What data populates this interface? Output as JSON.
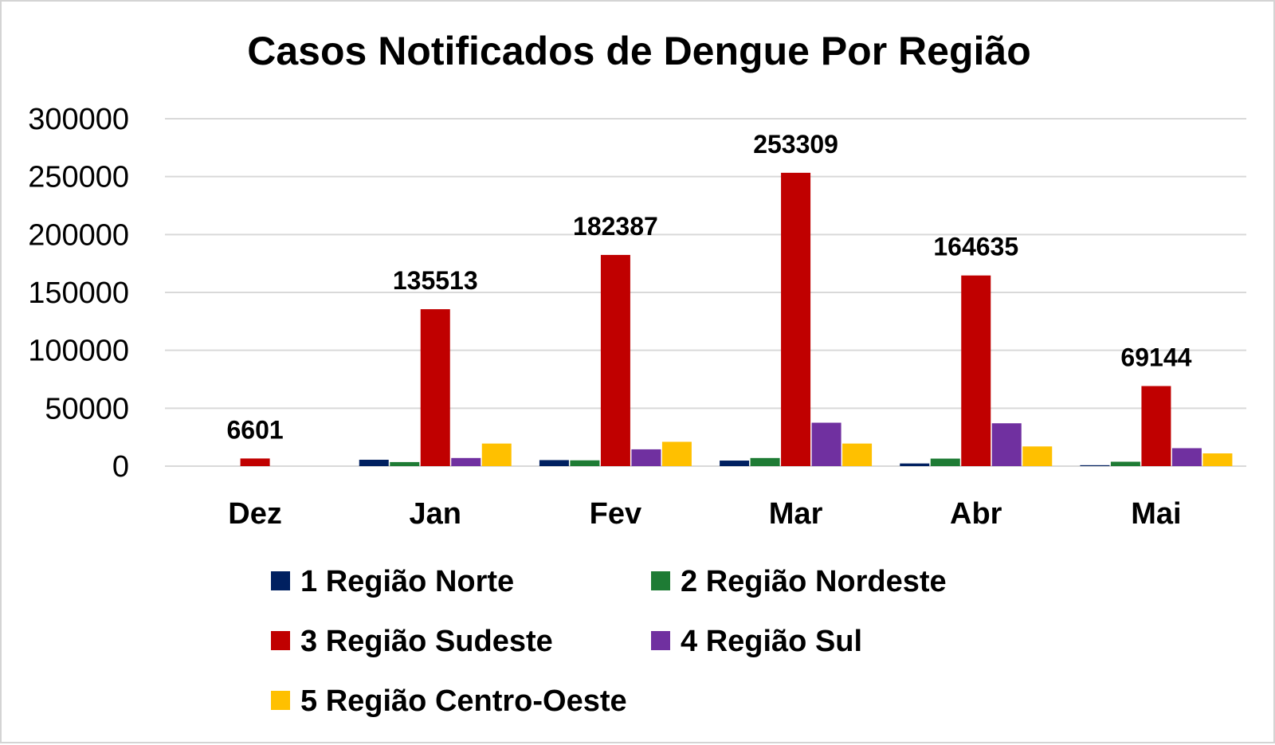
{
  "chart_data": {
    "type": "bar",
    "title": "Casos Notificados de Dengue Por Região",
    "xlabel": "",
    "ylabel": "",
    "categories": [
      "Dez",
      "Jan",
      "Fev",
      "Mar",
      "Abr",
      "Mai"
    ],
    "ylim": [
      0,
      300000
    ],
    "yticks": [
      "0",
      "50000",
      "100000",
      "150000",
      "200000",
      "250000",
      "300000"
    ],
    "grid": true,
    "legend_position": "bottom",
    "series": [
      {
        "name": "1 Região Norte",
        "color": "#002060",
        "values": [
          0,
          5500,
          5200,
          4800,
          2300,
          800
        ]
      },
      {
        "name": "2 Região Nordeste",
        "color": "#1E7B34",
        "values": [
          0,
          3500,
          5000,
          7000,
          6500,
          3800
        ]
      },
      {
        "name": "3 Região Sudeste",
        "color": "#C00000",
        "values": [
          6601,
          135513,
          182387,
          253309,
          164635,
          69144
        ]
      },
      {
        "name": "4 Região Sul",
        "color": "#7030A0",
        "values": [
          0,
          7000,
          14500,
          37500,
          37000,
          15500
        ]
      },
      {
        "name": "5 Região Centro-Oeste",
        "color": "#FFC000",
        "values": [
          0,
          19500,
          21000,
          19500,
          17000,
          11000
        ]
      }
    ],
    "data_labels": {
      "series": "3 Região Sudeste",
      "labels": [
        "6601",
        "135513",
        "182387",
        "253309",
        "164635",
        "69144"
      ]
    }
  }
}
